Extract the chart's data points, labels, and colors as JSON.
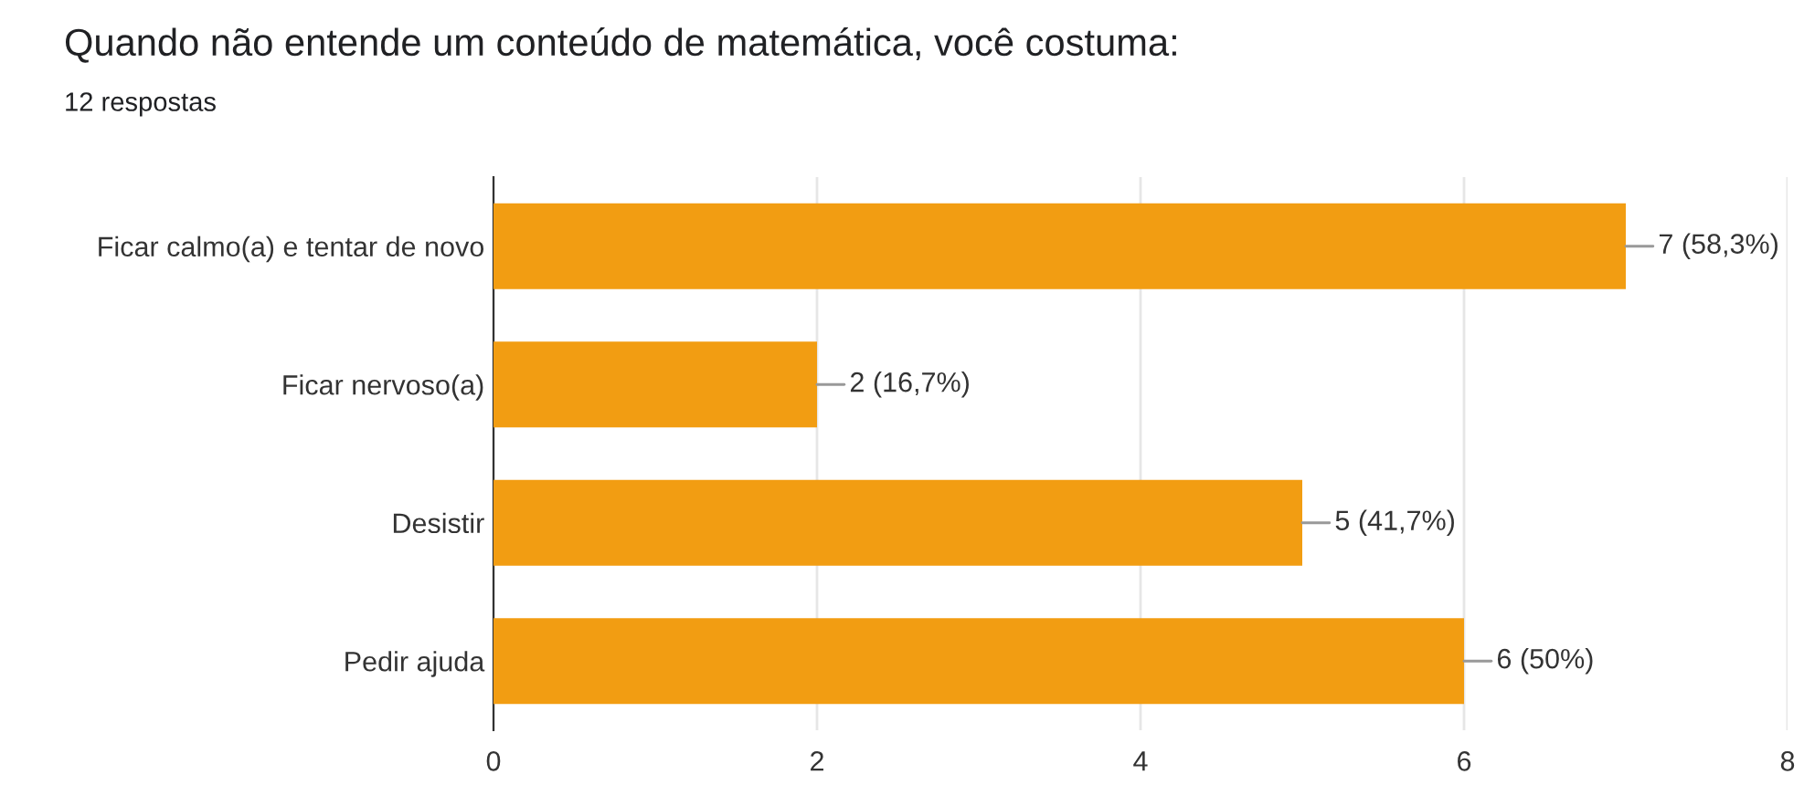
{
  "chart_data": {
    "type": "bar",
    "orientation": "horizontal",
    "title": "Quando não entende um conteúdo de matemática, você costuma:",
    "subtitle": "12 respostas",
    "categories": [
      "Ficar calmo(a) e tentar de novo",
      "Ficar nervoso(a)",
      "Desistir",
      "Pedir ajuda"
    ],
    "values": [
      7,
      2,
      5,
      6
    ],
    "color": "#f29d12",
    "value_labels": [
      "7 (58,3%)",
      "2 (16,7%)",
      "5 (41,7%)",
      "6 (50%)"
    ],
    "xlim": [
      0,
      8
    ],
    "xticks": [
      0,
      2,
      4,
      6,
      8
    ],
    "grid": "x"
  }
}
